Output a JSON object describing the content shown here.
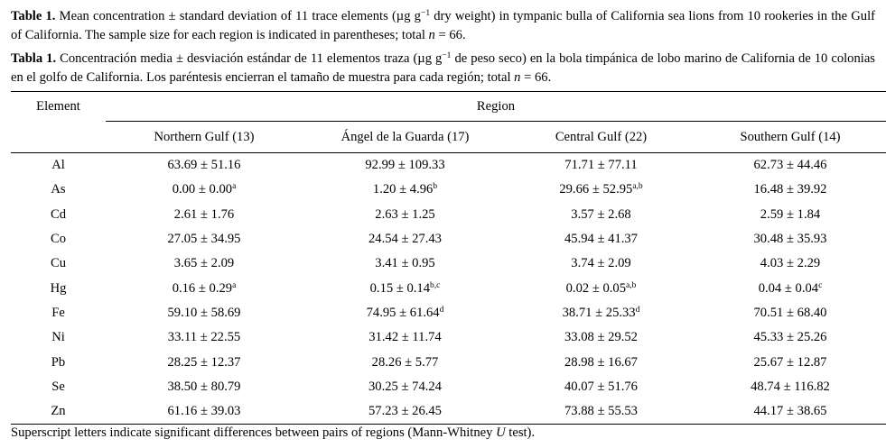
{
  "caption_en": {
    "label": "Table 1.",
    "text": "Mean concentration ± standard deviation of 11 trace elements (µg g",
    "unit_exp": "−1",
    "text2": " dry weight) in tympanic bulla of California sea lions from 10 rookeries in the Gulf of California. The sample size for each region is indicated in parentheses; total ",
    "n": "n",
    "text3": " = 66."
  },
  "caption_es": {
    "label": "Tabla 1.",
    "text": "Concentración media ± desviación estándar de 11 elementos traza (µg g",
    "unit_exp": "−1",
    "text2": " de peso seco) en la bola timpánica de lobo marino de California de 10 colonias en el golfo de California. Los paréntesis encierran el tamaño de muestra para cada región; total ",
    "n": "n",
    "text3": " = 66."
  },
  "table": {
    "element_header": "Element",
    "region_header": "Region",
    "columns": [
      "Northern Gulf (13)",
      "Ángel de la Guarda (17)",
      "Central Gulf (22)",
      "Southern Gulf (14)"
    ],
    "rows": [
      {
        "el": "Al",
        "v": [
          [
            "63.69 ± 51.16",
            ""
          ],
          [
            "92.99 ± 109.33",
            ""
          ],
          [
            "71.71 ± 77.11",
            ""
          ],
          [
            "62.73 ± 44.46",
            ""
          ]
        ]
      },
      {
        "el": "As",
        "v": [
          [
            "0.00 ± 0.00",
            "a"
          ],
          [
            "1.20 ± 4.96",
            "b"
          ],
          [
            "29.66 ± 52.95",
            "a,b"
          ],
          [
            "16.48 ± 39.92",
            ""
          ]
        ]
      },
      {
        "el": "Cd",
        "v": [
          [
            "2.61 ± 1.76",
            ""
          ],
          [
            "2.63 ± 1.25",
            ""
          ],
          [
            "3.57 ± 2.68",
            ""
          ],
          [
            "2.59 ± 1.84",
            ""
          ]
        ]
      },
      {
        "el": "Co",
        "v": [
          [
            "27.05 ± 34.95",
            ""
          ],
          [
            "24.54 ± 27.43",
            ""
          ],
          [
            "45.94 ± 41.37",
            ""
          ],
          [
            "30.48 ± 35.93",
            ""
          ]
        ]
      },
      {
        "el": "Cu",
        "v": [
          [
            "3.65 ± 2.09",
            ""
          ],
          [
            "3.41 ± 0.95",
            ""
          ],
          [
            "3.74 ± 2.09",
            ""
          ],
          [
            "4.03 ± 2.29",
            ""
          ]
        ]
      },
      {
        "el": "Hg",
        "v": [
          [
            "0.16 ± 0.29",
            "a"
          ],
          [
            "0.15 ± 0.14",
            "b,c"
          ],
          [
            "0.02 ± 0.05",
            "a,b"
          ],
          [
            "0.04 ± 0.04",
            "c"
          ]
        ]
      },
      {
        "el": "Fe",
        "v": [
          [
            "59.10 ± 58.69",
            ""
          ],
          [
            "74.95 ± 61.64",
            "d"
          ],
          [
            "38.71 ± 25.33",
            "d"
          ],
          [
            "70.51 ± 68.40",
            ""
          ]
        ]
      },
      {
        "el": "Ni",
        "v": [
          [
            "33.11 ± 22.55",
            ""
          ],
          [
            "31.42 ± 11.74",
            ""
          ],
          [
            "33.08 ± 29.52",
            ""
          ],
          [
            "45.33 ± 25.26",
            ""
          ]
        ]
      },
      {
        "el": "Pb",
        "v": [
          [
            "28.25 ± 12.37",
            ""
          ],
          [
            "28.26 ± 5.77",
            ""
          ],
          [
            "28.98 ± 16.67",
            ""
          ],
          [
            "25.67 ± 12.87",
            ""
          ]
        ]
      },
      {
        "el": "Se",
        "v": [
          [
            "38.50 ± 80.79",
            ""
          ],
          [
            "30.25 ± 74.24",
            ""
          ],
          [
            "40.07 ± 51.76",
            ""
          ],
          [
            "48.74 ± 116.82",
            ""
          ]
        ]
      },
      {
        "el": "Zn",
        "v": [
          [
            "61.16 ± 39.03",
            ""
          ],
          [
            "57.23 ± 26.45",
            ""
          ],
          [
            "73.88 ± 55.53",
            ""
          ],
          [
            "44.17 ± 38.65",
            ""
          ]
        ]
      }
    ]
  },
  "footnote": {
    "text": "Superscript letters indicate significant differences between pairs of regions (Mann-Whitney ",
    "u": "U",
    "text2": " test)."
  }
}
